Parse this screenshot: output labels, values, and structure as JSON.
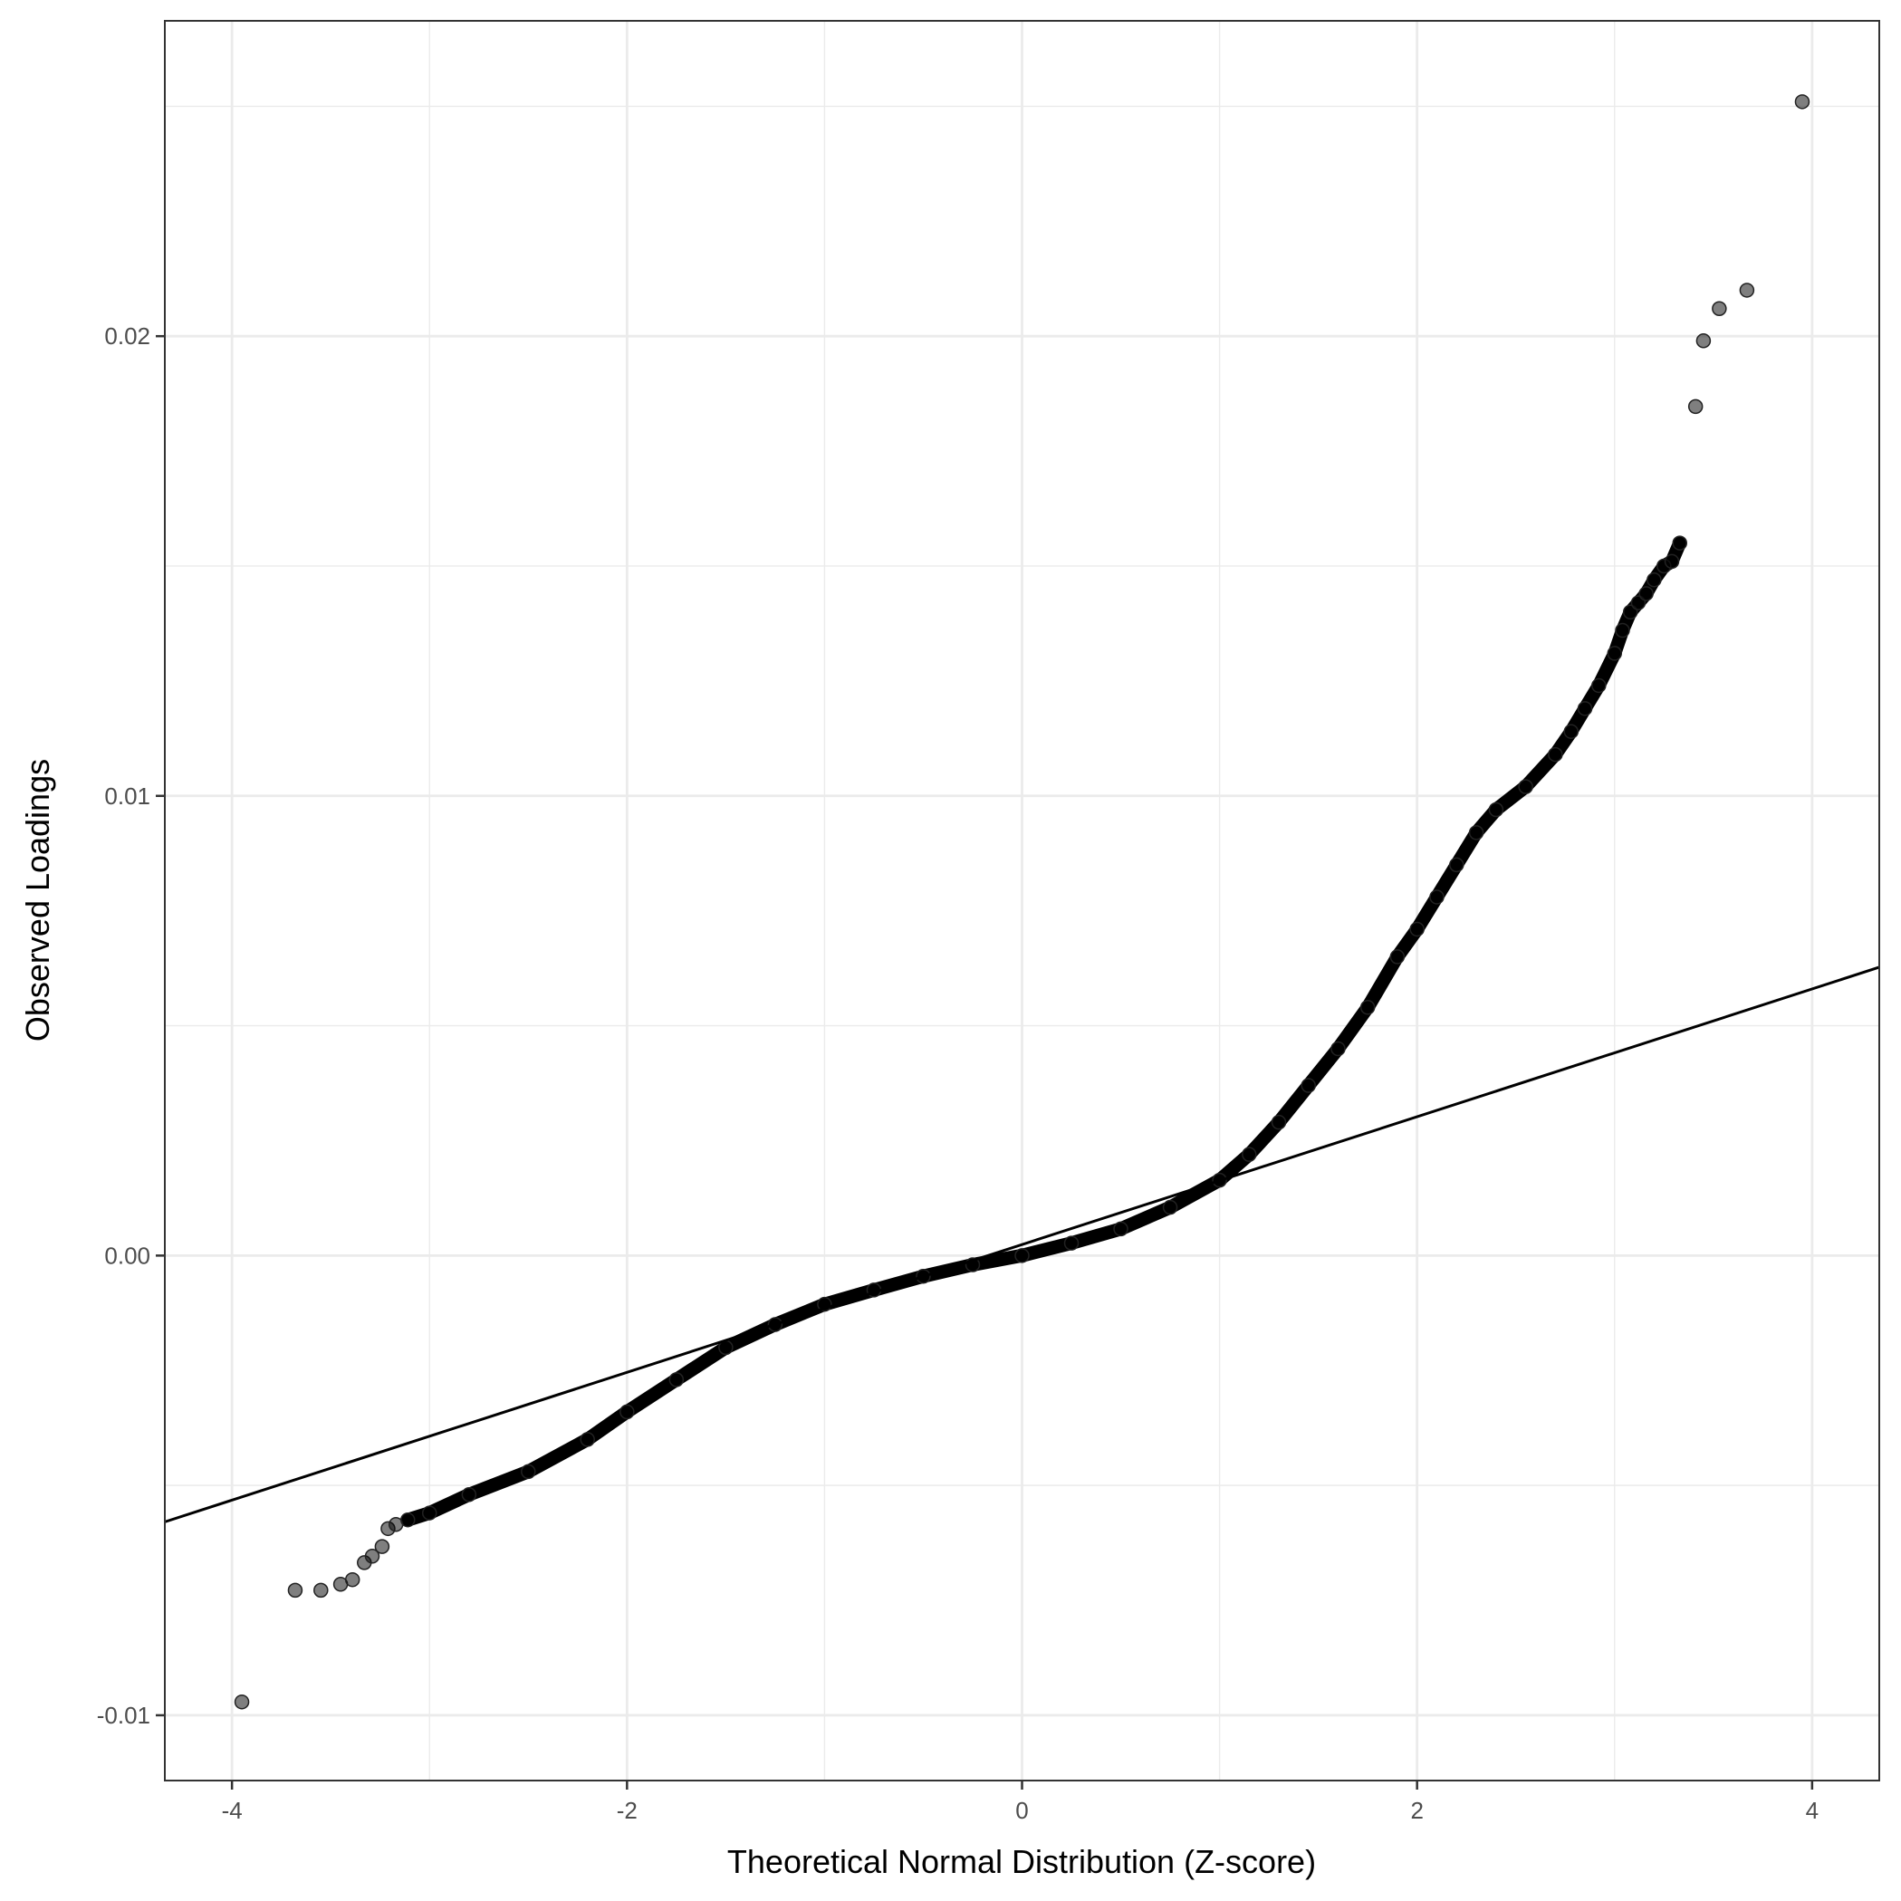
{
  "chart_data": {
    "type": "scatter",
    "title": "",
    "xlabel": "Theoretical Normal Distribution (Z-score)",
    "ylabel": "Observed Loadings",
    "xlim": [
      -4.34,
      4.34
    ],
    "ylim": [
      -0.01142,
      0.02686
    ],
    "x_ticks": [
      {
        "value": -4,
        "label": "-4"
      },
      {
        "value": -2,
        "label": "-2"
      },
      {
        "value": 0,
        "label": "0"
      },
      {
        "value": 2,
        "label": "2"
      },
      {
        "value": 4,
        "label": "4"
      }
    ],
    "y_ticks": [
      {
        "value": -0.01,
        "label": "-0.01"
      },
      {
        "value": 0,
        "label": "0.00"
      },
      {
        "value": 0.01,
        "label": "0.01"
      },
      {
        "value": 0.02,
        "label": "0.02"
      }
    ],
    "grid": true,
    "theme": "bw",
    "point_color": "#000000",
    "point_opacity": 0.5,
    "reference_line": {
      "intercept": 0.00024,
      "slope": 0.00139,
      "color": "#000000"
    },
    "points": [
      [
        -3.95,
        -0.00971
      ],
      [
        -3.68,
        -0.00728
      ],
      [
        -3.55,
        -0.00728
      ],
      [
        -3.45,
        -0.00715
      ],
      [
        -3.39,
        -0.00705
      ],
      [
        -3.33,
        -0.00668
      ],
      [
        -3.29,
        -0.00654
      ],
      [
        -3.24,
        -0.00633
      ],
      [
        -3.21,
        -0.00594
      ],
      [
        -3.17,
        -0.00585
      ],
      [
        -3.11,
        -0.00575
      ],
      [
        -3.0,
        -0.0056
      ],
      [
        -2.8,
        -0.0052
      ],
      [
        -2.5,
        -0.0047
      ],
      [
        -2.2,
        -0.004
      ],
      [
        -2.0,
        -0.0034
      ],
      [
        -1.75,
        -0.0027
      ],
      [
        -1.5,
        -0.002
      ],
      [
        -1.25,
        -0.0015
      ],
      [
        -1.0,
        -0.00106
      ],
      [
        -0.75,
        -0.00075
      ],
      [
        -0.5,
        -0.00045
      ],
      [
        -0.25,
        -0.0002
      ],
      [
        0,
        0
      ],
      [
        0.25,
        0.00027
      ],
      [
        0.5,
        0.00058
      ],
      [
        0.75,
        0.00105
      ],
      [
        1.0,
        0.00164
      ],
      [
        1.15,
        0.0022
      ],
      [
        1.3,
        0.0029
      ],
      [
        1.45,
        0.0037
      ],
      [
        1.6,
        0.0045
      ],
      [
        1.75,
        0.0054
      ],
      [
        1.9,
        0.0065
      ],
      [
        2.0,
        0.0071
      ],
      [
        2.1,
        0.0078
      ],
      [
        2.2,
        0.0085
      ],
      [
        2.3,
        0.0092
      ],
      [
        2.4,
        0.0097
      ],
      [
        2.55,
        0.0102
      ],
      [
        2.7,
        0.0109
      ],
      [
        2.78,
        0.0114
      ],
      [
        2.85,
        0.0119
      ],
      [
        2.92,
        0.0124
      ],
      [
        3.0,
        0.0131
      ],
      [
        3.04,
        0.0136
      ],
      [
        3.08,
        0.014
      ],
      [
        3.12,
        0.0142
      ],
      [
        3.16,
        0.0144
      ],
      [
        3.2,
        0.0147
      ],
      [
        3.25,
        0.015
      ],
      [
        3.29,
        0.0151
      ],
      [
        3.33,
        0.0155
      ],
      [
        3.41,
        0.01847
      ],
      [
        3.45,
        0.0199
      ],
      [
        3.53,
        0.0206
      ],
      [
        3.67,
        0.021
      ],
      [
        3.95,
        0.0251
      ]
    ]
  }
}
